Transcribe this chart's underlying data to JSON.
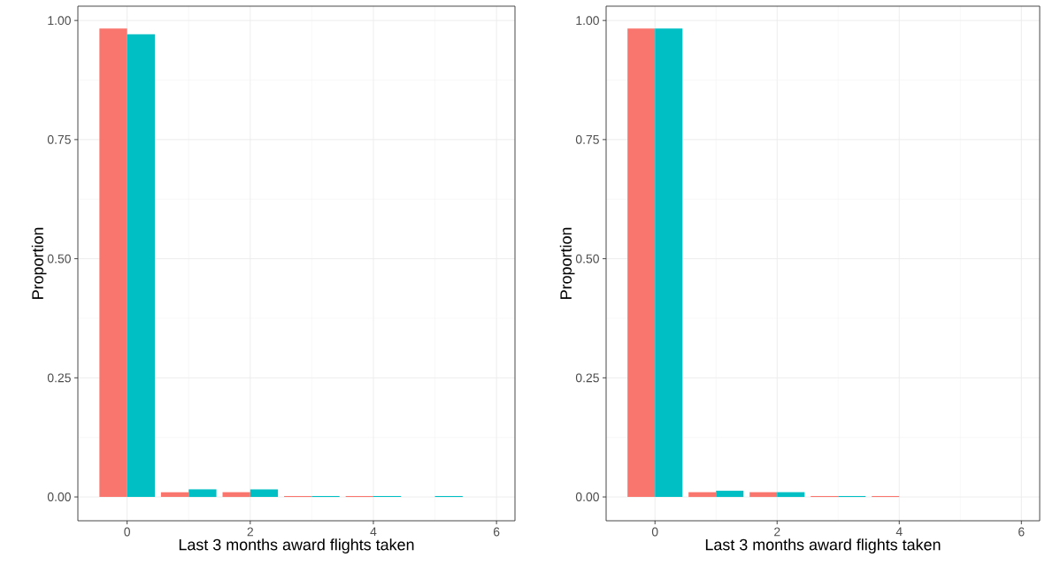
{
  "chart_data": [
    {
      "type": "bar",
      "xlabel": "Last 3 months award flights taken",
      "ylabel": "Proportion",
      "x": [
        0,
        1,
        2,
        3,
        4,
        5
      ],
      "series": [
        {
          "color": "#f8766d",
          "values": [
            0.983,
            0.01,
            0.01,
            0.002,
            0.002,
            null
          ]
        },
        {
          "color": "#00bfc4",
          "values": [
            0.971,
            0.016,
            0.016,
            0.002,
            0.002,
            0.002
          ]
        }
      ],
      "xlim": [
        -0.8,
        6.3
      ],
      "ylim": [
        -0.05,
        1.03
      ],
      "xticks": [
        0,
        2,
        4,
        6
      ],
      "yticks": [
        {
          "value": 0,
          "label": "0.00"
        },
        {
          "value": 0.25,
          "label": "0.25"
        },
        {
          "value": 0.5,
          "label": "0.50"
        },
        {
          "value": 0.75,
          "label": "0.75"
        },
        {
          "value": 1,
          "label": "1.00"
        }
      ],
      "grid": true
    },
    {
      "type": "bar",
      "xlabel": "Last 3 months award flights taken",
      "ylabel": "Proportion",
      "x": [
        0,
        1,
        2,
        3,
        4
      ],
      "series": [
        {
          "color": "#f8766d",
          "values": [
            0.983,
            0.01,
            0.01,
            0.002,
            0.002
          ]
        },
        {
          "color": "#00bfc4",
          "values": [
            0.983,
            0.013,
            0.01,
            0.002,
            null
          ]
        }
      ],
      "xlim": [
        -0.8,
        6.3
      ],
      "ylim": [
        -0.05,
        1.03
      ],
      "xticks": [
        0,
        2,
        4,
        6
      ],
      "yticks": [
        {
          "value": 0,
          "label": "0.00"
        },
        {
          "value": 0.25,
          "label": "0.25"
        },
        {
          "value": 0.5,
          "label": "0.50"
        },
        {
          "value": 0.75,
          "label": "0.75"
        },
        {
          "value": 1,
          "label": "1.00"
        }
      ],
      "grid": true
    }
  ]
}
